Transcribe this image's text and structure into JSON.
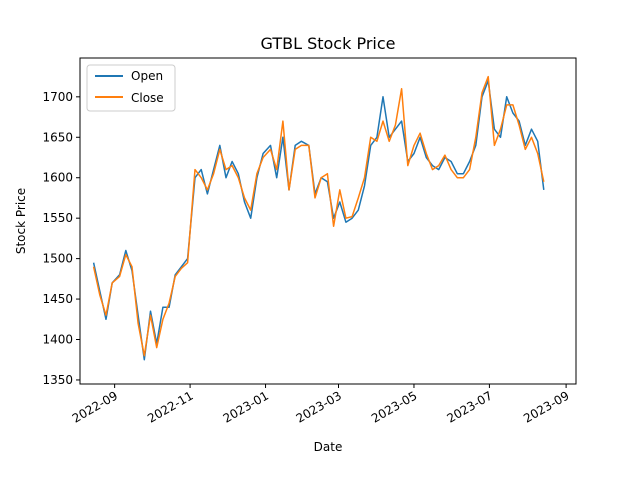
{
  "chart_data": {
    "type": "line",
    "title": "GTBL Stock Price",
    "xlabel": "Date",
    "ylabel": "Stock Price",
    "xlim": [
      "2022-08-04",
      "2023-09-09"
    ],
    "ylim": [
      1345,
      1748
    ],
    "x_ticks": [
      "2022-09",
      "2022-11",
      "2023-01",
      "2023-03",
      "2023-05",
      "2023-07",
      "2023-09"
    ],
    "y_ticks": [
      1350,
      1400,
      1450,
      1500,
      1550,
      1600,
      1650,
      1700
    ],
    "grid": false,
    "legend": {
      "placement": "upper left"
    },
    "x": [
      "2022-08-15",
      "2022-08-20",
      "2022-08-25",
      "2022-08-30",
      "2022-09-05",
      "2022-09-10",
      "2022-09-15",
      "2022-09-20",
      "2022-09-25",
      "2022-09-30",
      "2022-10-05",
      "2022-10-10",
      "2022-10-15",
      "2022-10-20",
      "2022-10-25",
      "2022-10-30",
      "2022-11-05",
      "2022-11-10",
      "2022-11-15",
      "2022-11-20",
      "2022-11-25",
      "2022-11-30",
      "2022-12-05",
      "2022-12-10",
      "2022-12-15",
      "2022-12-20",
      "2022-12-25",
      "2022-12-30",
      "2023-01-05",
      "2023-01-10",
      "2023-01-15",
      "2023-01-20",
      "2023-01-25",
      "2023-01-30",
      "2023-02-05",
      "2023-02-10",
      "2023-02-15",
      "2023-02-20",
      "2023-02-25",
      "2023-03-02",
      "2023-03-07",
      "2023-03-12",
      "2023-03-17",
      "2023-03-22",
      "2023-03-27",
      "2023-04-01",
      "2023-04-06",
      "2023-04-11",
      "2023-04-16",
      "2023-04-21",
      "2023-04-26",
      "2023-05-01",
      "2023-05-06",
      "2023-05-11",
      "2023-05-16",
      "2023-05-21",
      "2023-05-26",
      "2023-05-31",
      "2023-06-05",
      "2023-06-10",
      "2023-06-15",
      "2023-06-20",
      "2023-06-25",
      "2023-06-30",
      "2023-07-05",
      "2023-07-10",
      "2023-07-15",
      "2023-07-20",
      "2023-07-25",
      "2023-07-30",
      "2023-08-04",
      "2023-08-09",
      "2023-08-14"
    ],
    "series": [
      {
        "name": "Open",
        "color": "#1f77b4",
        "values": [
          1495,
          1460,
          1425,
          1470,
          1480,
          1510,
          1485,
          1430,
          1375,
          1435,
          1395,
          1440,
          1440,
          1480,
          1490,
          1500,
          1600,
          1610,
          1580,
          1610,
          1640,
          1600,
          1620,
          1605,
          1570,
          1550,
          1600,
          1630,
          1640,
          1600,
          1650,
          1585,
          1640,
          1645,
          1640,
          1580,
          1600,
          1595,
          1550,
          1570,
          1545,
          1550,
          1560,
          1590,
          1640,
          1650,
          1700,
          1650,
          1660,
          1670,
          1620,
          1630,
          1650,
          1625,
          1615,
          1610,
          1625,
          1620,
          1605,
          1605,
          1620,
          1640,
          1700,
          1720,
          1660,
          1650,
          1700,
          1680,
          1670,
          1640,
          1660,
          1645,
          1585
        ]
      },
      {
        "name": "Close",
        "color": "#ff7f0e",
        "values": [
          1490,
          1455,
          1430,
          1470,
          1478,
          1505,
          1490,
          1420,
          1380,
          1430,
          1390,
          1425,
          1445,
          1478,
          1488,
          1495,
          1610,
          1600,
          1585,
          1605,
          1635,
          1610,
          1615,
          1600,
          1575,
          1560,
          1605,
          1625,
          1635,
          1610,
          1670,
          1585,
          1635,
          1640,
          1640,
          1575,
          1600,
          1605,
          1540,
          1585,
          1550,
          1552,
          1575,
          1600,
          1650,
          1645,
          1670,
          1645,
          1665,
          1710,
          1615,
          1640,
          1655,
          1630,
          1610,
          1615,
          1628,
          1610,
          1600,
          1600,
          1610,
          1650,
          1705,
          1725,
          1640,
          1660,
          1690,
          1690,
          1665,
          1635,
          1650,
          1630,
          1595
        ]
      }
    ]
  }
}
